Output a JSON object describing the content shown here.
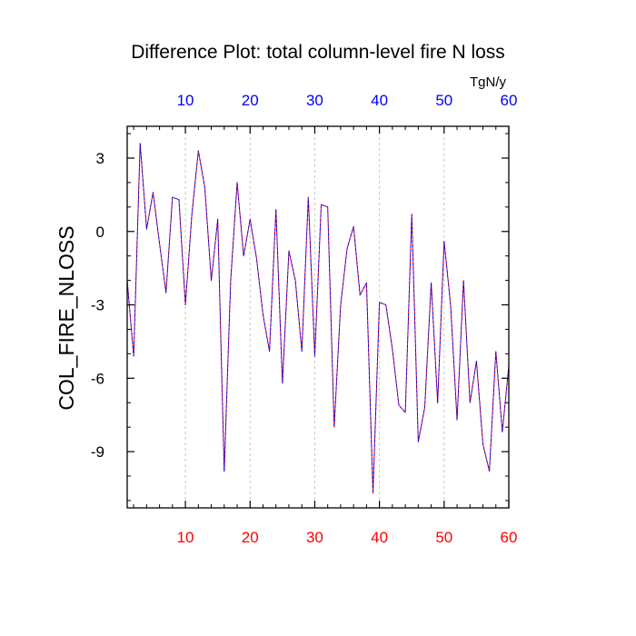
{
  "chart_data": {
    "type": "line",
    "title": "Difference Plot: total column-level fire N loss",
    "units_label": "TgN/y",
    "ylabel": "COL_FIRE_NLOSS",
    "xlabel": "",
    "xlim": [
      1,
      60
    ],
    "ylim": [
      -11.3,
      4.3
    ],
    "x_ticks": [
      10,
      20,
      30,
      40,
      50,
      60
    ],
    "x_tick_labels": [
      "10",
      "20",
      "30",
      "40",
      "50",
      "60"
    ],
    "y_ticks": [
      3,
      0,
      -3,
      -6,
      -9
    ],
    "y_tick_labels": [
      "3",
      "0",
      "-3",
      "-6",
      "-9"
    ],
    "grid": "vertical dashed at x ticks",
    "bottom_axis_label_color": "#ff0000",
    "top_axis_label_color": "#0000ff",
    "series": [
      {
        "color": "#0000ff",
        "style": "dashed",
        "x": [
          1,
          2,
          3,
          4,
          5,
          6,
          7,
          8,
          9,
          10,
          11,
          12,
          13,
          14,
          15,
          16,
          17,
          18,
          19,
          20,
          21,
          22,
          23,
          24,
          25,
          26,
          27,
          28,
          29,
          30,
          31,
          32,
          33,
          34,
          35,
          36,
          37,
          38,
          39,
          40,
          41,
          42,
          43,
          44,
          45,
          46,
          47,
          48,
          49,
          50,
          51,
          52,
          53,
          54,
          55,
          56,
          57,
          58,
          59,
          60
        ],
        "values": [
          -2.0,
          -5.1,
          3.6,
          0.1,
          1.6,
          -0.5,
          -2.5,
          1.4,
          1.3,
          -3.0,
          0.7,
          3.3,
          1.8,
          -2.0,
          0.5,
          -9.8,
          -2.0,
          2.0,
          -1.0,
          0.5,
          -1.1,
          -3.4,
          -4.9,
          0.9,
          -6.2,
          -0.8,
          -2.0,
          -4.9,
          1.4,
          -5.1,
          1.1,
          1.0,
          -8.0,
          -3.0,
          -0.7,
          0.2,
          -2.6,
          -2.1,
          -10.7,
          -2.9,
          -3.0,
          -4.8,
          -7.1,
          -7.4,
          0.7,
          -8.6,
          -7.2,
          -2.1,
          -7.0,
          -0.4,
          -3.0,
          -7.7,
          -2.0,
          -7.0,
          -5.3,
          -8.7,
          -9.8,
          -4.9,
          -8.2,
          -5.5
        ]
      },
      {
        "color": "#ff0000",
        "style": "dashed",
        "x": [
          1,
          2,
          3,
          4,
          5,
          6,
          7,
          8,
          9,
          10,
          11,
          12,
          13,
          14,
          15,
          16,
          17,
          18,
          19,
          20,
          21,
          22,
          23,
          24,
          25,
          26,
          27,
          28,
          29,
          30,
          31,
          32,
          33,
          34,
          35,
          36,
          37,
          38,
          39,
          40,
          41,
          42,
          43,
          44,
          45,
          46,
          47,
          48,
          49,
          50,
          51,
          52,
          53,
          54,
          55,
          56,
          57,
          58,
          59,
          60
        ],
        "values": [
          -2.0,
          -5.1,
          3.6,
          0.1,
          1.6,
          -0.5,
          -2.5,
          1.4,
          1.3,
          -3.0,
          0.7,
          3.3,
          1.8,
          -2.0,
          0.5,
          -9.8,
          -2.0,
          2.0,
          -1.0,
          0.5,
          -1.1,
          -3.4,
          -4.9,
          0.9,
          -6.2,
          -0.8,
          -2.0,
          -4.9,
          1.4,
          -5.1,
          1.1,
          1.0,
          -8.0,
          -3.0,
          -0.7,
          0.2,
          -2.6,
          -2.1,
          -10.7,
          -2.9,
          -3.0,
          -4.8,
          -7.1,
          -7.4,
          0.7,
          -8.6,
          -7.2,
          -2.1,
          -7.0,
          -0.4,
          -3.0,
          -7.7,
          -2.0,
          -7.0,
          -5.3,
          -8.7,
          -9.8,
          -4.9,
          -8.2,
          -5.5
        ]
      }
    ]
  }
}
